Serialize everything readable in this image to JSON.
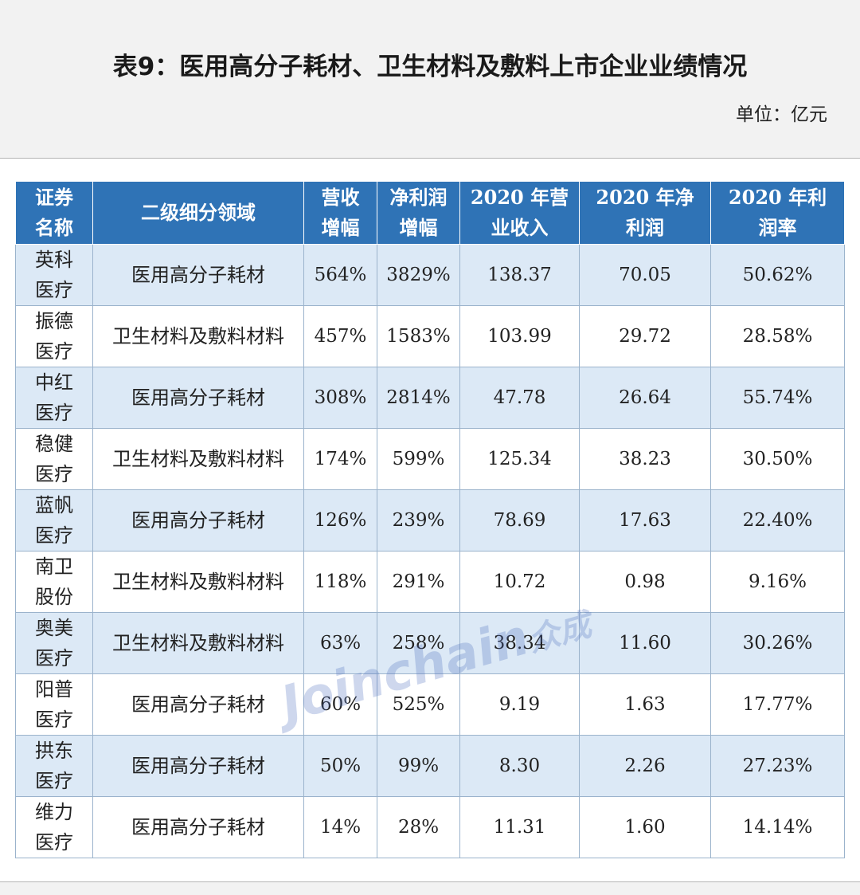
{
  "header": {
    "title": "表9：医用高分子耗材、卫生材料及敷料上市企业业绩情况",
    "unit": "单位：亿元"
  },
  "table": {
    "columns": [
      "证券名称",
      "二级细分领域",
      "营收增幅",
      "净利润增幅",
      "2020 年营业收入",
      "2020 年净利润",
      "2020 年利润率"
    ],
    "rows": [
      [
        "英科医疗",
        "医用高分子耗材",
        "564%",
        "3829%",
        "138.37",
        "70.05",
        "50.62%"
      ],
      [
        "振德医疗",
        "卫生材料及敷料材料",
        "457%",
        "1583%",
        "103.99",
        "29.72",
        "28.58%"
      ],
      [
        "中红医疗",
        "医用高分子耗材",
        "308%",
        "2814%",
        "47.78",
        "26.64",
        "55.74%"
      ],
      [
        "稳健医疗",
        "卫生材料及敷料材料",
        "174%",
        "599%",
        "125.34",
        "38.23",
        "30.50%"
      ],
      [
        "蓝帆医疗",
        "医用高分子耗材",
        "126%",
        "239%",
        "78.69",
        "17.63",
        "22.40%"
      ],
      [
        "南卫股份",
        "卫生材料及敷料材料",
        "118%",
        "291%",
        "10.72",
        "0.98",
        "9.16%"
      ],
      [
        "奥美医疗",
        "卫生材料及敷料材料",
        "63%",
        "258%",
        "38.34",
        "11.60",
        "30.26%"
      ],
      [
        "阳普医疗",
        "医用高分子耗材",
        "60%",
        "525%",
        "9.19",
        "1.63",
        "17.77%"
      ],
      [
        "拱东医疗",
        "医用高分子耗材",
        "50%",
        "99%",
        "8.30",
        "2.26",
        "27.23%"
      ],
      [
        "维力医疗",
        "医用高分子耗材",
        "14%",
        "28%",
        "11.31",
        "1.60",
        "14.14%"
      ]
    ]
  },
  "watermark": {
    "text_en": "Joinchain",
    "text_cn": "众成"
  },
  "colors": {
    "header_bg": "#2f73b6",
    "row_alt_bg": "#dce9f6",
    "border": "#9bb3cc"
  }
}
